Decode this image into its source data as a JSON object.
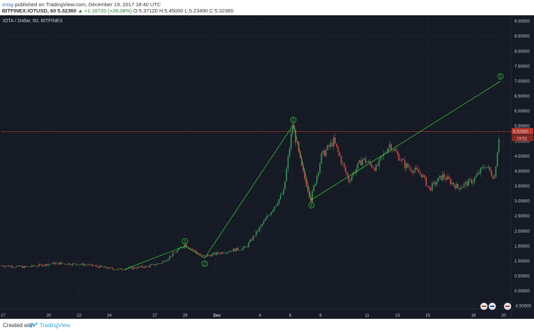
{
  "header": {
    "author": "znog",
    "published_text": " published on TradingView.com, December 19, 2017 18:40 UTC",
    "symbol": "BITFINEX:IOTUSD, 60",
    "last": "5.32360",
    "change": "▲ +1.16720 (+28.08%)",
    "open": "O:5.37120",
    "high": "H:5.45000",
    "low": "L:5.23490",
    "close": "C:5.32360"
  },
  "footer": {
    "created_with": "Created with",
    "brand": "TradingView"
  },
  "colors": {
    "background": "#151a24",
    "up": "#3a9d5c",
    "down": "#d94b4b",
    "wave_line": "#39c639",
    "price_line": "#c0392b",
    "grid": "#1f2633"
  },
  "icons": [
    "tradingview-logo-icon"
  ],
  "chart_data": {
    "type": "candlestick",
    "title": "IOTA / Dollar, 60, BITFINEX",
    "ylim": [
      -0.6,
      9.2
    ],
    "y_ticks": [
      -0.5,
      0,
      0.5,
      1,
      1.5,
      2,
      2.5,
      3,
      3.5,
      4,
      4.5,
      5,
      5.5,
      6,
      6.5,
      7,
      7.5,
      8,
      8.5,
      9
    ],
    "y_tick_labels": [
      "-0.50000",
      "0.00000",
      "0.50000",
      "1.00000",
      "1.50000",
      "2.00000",
      "2.50000",
      "3.00000",
      "3.50000",
      "4.00000",
      "4.50000",
      "5.00000",
      "5.50000",
      "6.00000",
      "6.50000",
      "7.00000",
      "7.50000",
      "8.00000",
      "8.50000",
      "9.00000"
    ],
    "x_range_days": [
      16.9,
      50.5
    ],
    "x_ticks": [
      {
        "day": 17,
        "label": "17"
      },
      {
        "day": 20,
        "label": "20"
      },
      {
        "day": 22,
        "label": "22"
      },
      {
        "day": 24,
        "label": "24"
      },
      {
        "day": 27,
        "label": "27"
      },
      {
        "day": 29,
        "label": "29"
      },
      {
        "day": 31,
        "label": "Dec"
      },
      {
        "day": 34,
        "label": "4"
      },
      {
        "day": 36,
        "label": "6"
      },
      {
        "day": 38,
        "label": "8"
      },
      {
        "day": 41,
        "label": "11"
      },
      {
        "day": 43,
        "label": "13"
      },
      {
        "day": 45,
        "label": "15"
      },
      {
        "day": 48,
        "label": "18"
      },
      {
        "day": 50,
        "label": "20"
      }
    ],
    "price_anchors": [
      {
        "day": 16.9,
        "price": 0.85
      },
      {
        "day": 18.5,
        "price": 0.8
      },
      {
        "day": 20.5,
        "price": 0.93
      },
      {
        "day": 22.5,
        "price": 0.88
      },
      {
        "day": 24.5,
        "price": 0.72
      },
      {
        "day": 26.5,
        "price": 0.82
      },
      {
        "day": 27.5,
        "price": 0.95
      },
      {
        "day": 29.0,
        "price": 1.55
      },
      {
        "day": 30.2,
        "price": 1.15
      },
      {
        "day": 31.5,
        "price": 1.3
      },
      {
        "day": 33.0,
        "price": 1.45
      },
      {
        "day": 34.2,
        "price": 2.3
      },
      {
        "day": 35.5,
        "price": 3.3
      },
      {
        "day": 36.1,
        "price": 5.55
      },
      {
        "day": 36.7,
        "price": 4.1
      },
      {
        "day": 37.3,
        "price": 3.05
      },
      {
        "day": 38.0,
        "price": 4.5
      },
      {
        "day": 38.8,
        "price": 5.0
      },
      {
        "day": 39.8,
        "price": 3.7
      },
      {
        "day": 40.7,
        "price": 4.4
      },
      {
        "day": 41.6,
        "price": 4.1
      },
      {
        "day": 42.5,
        "price": 4.9
      },
      {
        "day": 43.5,
        "price": 4.2
      },
      {
        "day": 44.6,
        "price": 3.9
      },
      {
        "day": 45.1,
        "price": 3.4
      },
      {
        "day": 46.0,
        "price": 3.85
      },
      {
        "day": 47.0,
        "price": 3.45
      },
      {
        "day": 48.0,
        "price": 3.7
      },
      {
        "day": 48.8,
        "price": 4.2
      },
      {
        "day": 49.4,
        "price": 3.8
      },
      {
        "day": 49.75,
        "price": 5.4
      }
    ],
    "wave_points": [
      {
        "label": "1",
        "day": 29.0,
        "price": 1.5
      },
      {
        "label": "2",
        "day": 30.3,
        "price": 1.1
      },
      {
        "label": "3",
        "day": 36.15,
        "price": 5.55
      },
      {
        "label": "4",
        "day": 37.35,
        "price": 3.05
      },
      {
        "label": "5",
        "day": 49.8,
        "price": 7.0
      }
    ],
    "wave_start": {
      "day": 25.0,
      "price": 0.72
    },
    "last_price": 5.3236,
    "last_price_label": "5.32360",
    "countdown_label": "19:52"
  }
}
